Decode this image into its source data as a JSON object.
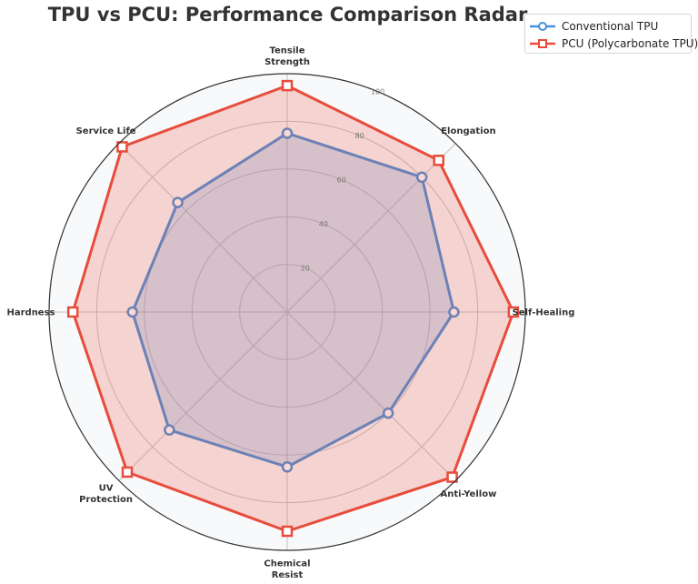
{
  "chart_data": {
    "type": "radar",
    "title": "TPU vs PCU: Performance Comparison Radar",
    "axes": [
      [
        "Tensile",
        "Strength"
      ],
      [
        "Elongation"
      ],
      [
        "Self-Healing"
      ],
      [
        "Anti-Yellow"
      ],
      [
        "Chemical",
        "Resist"
      ],
      [
        "UV",
        "Protection"
      ],
      [
        "Hardness"
      ],
      [
        "Service Life"
      ]
    ],
    "rticks": [
      "20",
      "40",
      "60",
      "80",
      "100"
    ],
    "rlim": [
      0,
      100
    ],
    "grid": true,
    "legend_position": "top-right",
    "series": [
      {
        "name": "Conventional TPU",
        "color": "#4a90d9",
        "marker": "circle",
        "values": [
          75,
          80,
          70,
          60,
          65,
          70,
          65,
          65
        ]
      },
      {
        "name": "PCU (Polycarbonate TPU)",
        "color": "#e74c3c",
        "marker": "square",
        "values": [
          95,
          90,
          95,
          98,
          92,
          95,
          90,
          98
        ]
      }
    ]
  }
}
